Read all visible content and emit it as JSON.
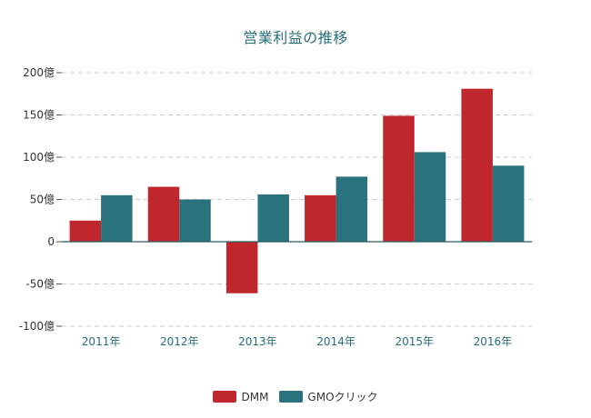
{
  "chart_data": {
    "type": "bar",
    "title": "営業利益の推移",
    "categories": [
      "2011年",
      "2012年",
      "2013年",
      "2014年",
      "2015年",
      "2016年"
    ],
    "series": [
      {
        "name": "DMM",
        "color": "#c0272d",
        "values": [
          25,
          65,
          -61,
          55,
          149,
          181
        ]
      },
      {
        "name": "GMOクリック",
        "color": "#2a727c",
        "values": [
          55,
          50,
          56,
          77,
          106,
          90
        ]
      }
    ],
    "ylim": [
      -100,
      200
    ],
    "yticks": [
      200,
      150,
      100,
      50,
      0,
      -50,
      -100
    ],
    "ytick_labels": [
      "200億",
      "150億",
      "100億",
      "50億",
      "0",
      "-50億",
      "-100億"
    ],
    "grid": true,
    "legend_position": "bottom"
  }
}
